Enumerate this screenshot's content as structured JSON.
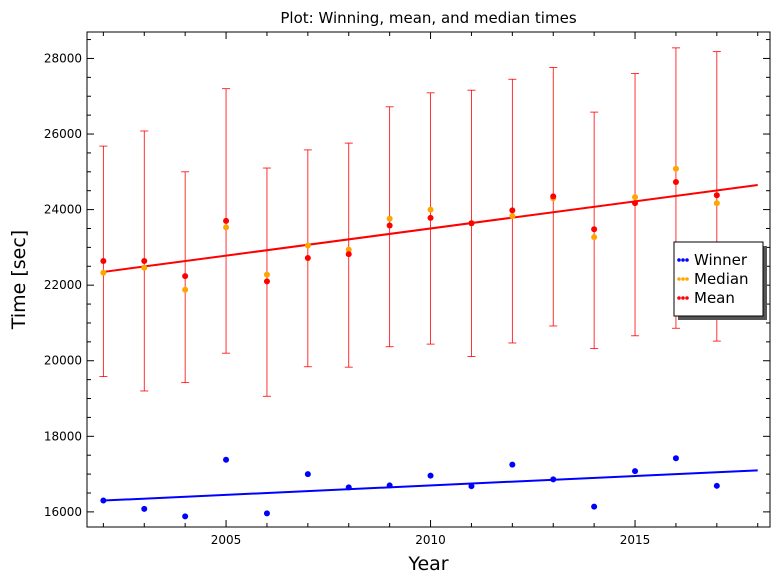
{
  "chart_data": {
    "type": "scatter",
    "title": "Plot: Winning, mean, and median times",
    "xlabel": "Year",
    "ylabel": "Time [sec]",
    "xlim": [
      2001.6,
      2018.3
    ],
    "ylim": [
      15600,
      28700
    ],
    "xticks": [
      2005,
      2010,
      2015
    ],
    "yticks": [
      16000,
      18000,
      20000,
      22000,
      24000,
      26000,
      28000
    ],
    "grid": false,
    "legend_position": "center-right",
    "colors": {
      "winner": "#0000ff",
      "median": "#ffa500",
      "mean": "#ff0000",
      "mean_fit": "#ff0000",
      "winner_fit": "#0000ff",
      "errorbar": "#ff0000"
    },
    "x": [
      2002,
      2003,
      2004,
      2005,
      2006,
      2007,
      2008,
      2009,
      2010,
      2011,
      2012,
      2013,
      2014,
      2015,
      2016,
      2017
    ],
    "series": [
      {
        "name": "Winner",
        "color": "#0000ff",
        "values": [
          16300,
          16080,
          15880,
          17380,
          15960,
          17000,
          16650,
          16700,
          16960,
          16680,
          17250,
          16860,
          16140,
          17080,
          17420,
          16690
        ]
      },
      {
        "name": "Median",
        "color": "#ffa500",
        "values": [
          22330,
          22460,
          21880,
          23530,
          22280,
          23050,
          22940,
          23760,
          24000,
          23640,
          23830,
          24300,
          23270,
          24330,
          25080,
          24170
        ]
      },
      {
        "name": "Mean",
        "color": "#ff0000",
        "values": [
          22640,
          22640,
          22240,
          23700,
          22100,
          22720,
          22820,
          23580,
          23780,
          23640,
          23980,
          24350,
          23480,
          24170,
          24730,
          24380
        ],
        "error_low": [
          19580,
          19200,
          19420,
          20200,
          19060,
          19840,
          19830,
          20370,
          20440,
          20110,
          20470,
          20920,
          20320,
          20660,
          20860,
          20520
        ],
        "error_high": [
          25680,
          26080,
          25000,
          27200,
          25100,
          25580,
          25760,
          26720,
          27090,
          27160,
          27450,
          27760,
          26580,
          27600,
          28280,
          28180
        ]
      }
    ],
    "fit_lines": [
      {
        "of": "Mean",
        "x": [
          2002,
          2018
        ],
        "y": [
          22350,
          24650
        ]
      },
      {
        "of": "Winner",
        "x": [
          2002,
          2018
        ],
        "y": [
          16300,
          17100
        ]
      }
    ]
  }
}
